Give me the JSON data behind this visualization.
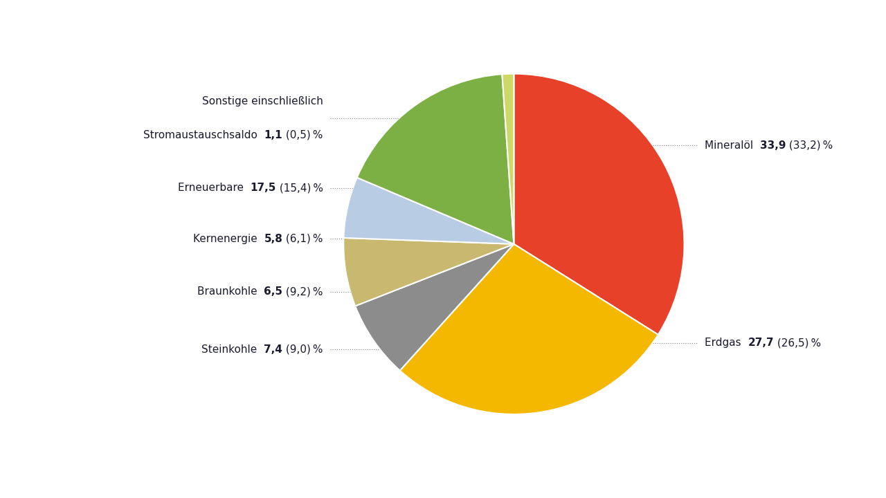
{
  "slices": [
    {
      "label": "Mineralöl",
      "value": 33.9,
      "curr": "33,9",
      "prev": "33,2",
      "color": "#e8412a",
      "side": "right"
    },
    {
      "label": "Erdgas",
      "value": 27.7,
      "curr": "27,7",
      "prev": "26,5",
      "color": "#f5b800",
      "side": "right"
    },
    {
      "label": "Steinkohle",
      "value": 7.4,
      "curr": "7,4",
      "prev": "9,0",
      "color": "#8c8c8c",
      "side": "left"
    },
    {
      "label": "Braunkohle",
      "value": 6.5,
      "curr": "6,5",
      "prev": "9,2",
      "color": "#c8b870",
      "side": "left"
    },
    {
      "label": "Kernenergie",
      "value": 5.8,
      "curr": "5,8",
      "prev": "6,1",
      "color": "#b8cce4",
      "side": "left"
    },
    {
      "label": "Erneuerbare",
      "value": 17.5,
      "curr": "17,5",
      "prev": "15,4",
      "color": "#7db044",
      "side": "left"
    },
    {
      "label_1": "Sonstige einschließlich",
      "label_2": "Stromaustauschsaldo",
      "value": 1.1,
      "curr": "1,1",
      "prev": "0,5",
      "color": "#ccd966",
      "side": "left",
      "multiline": true
    }
  ],
  "bg": "#ffffff",
  "tc": "#1a1a2e",
  "lc": "#888888",
  "fs": 11,
  "fs_bold": 11
}
